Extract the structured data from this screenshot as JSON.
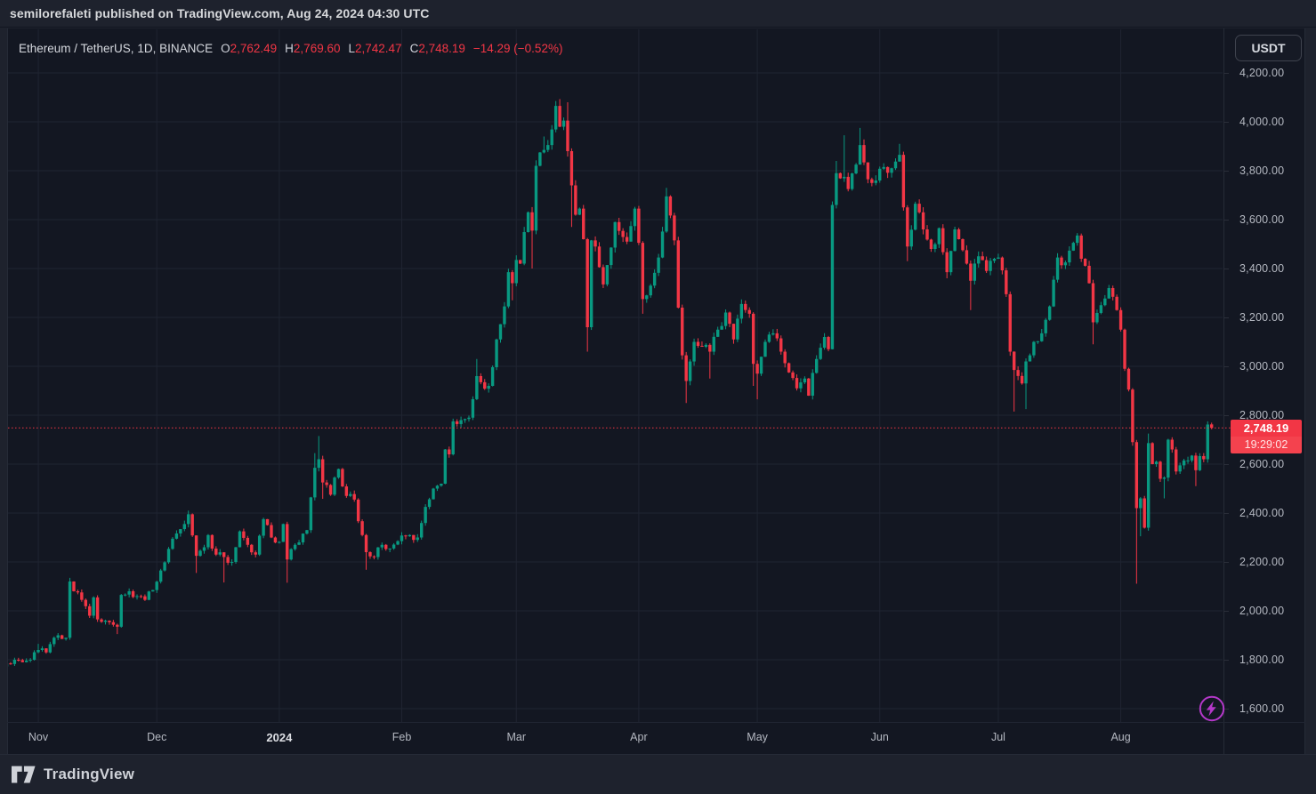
{
  "banner": {
    "text": "semilorefaleti published on TradingView.com, Aug 24, 2024 04:30 UTC"
  },
  "legend": {
    "symbol": "Ethereum / TetherUS, 1D, BINANCE",
    "open_label": "O",
    "open": "2,762.49",
    "high_label": "H",
    "high": "2,769.60",
    "low_label": "L",
    "low": "2,742.47",
    "close_label": "C",
    "close": "2,748.19",
    "change": "−14.29 (−0.52%)"
  },
  "price_axis": {
    "currency": "USDT",
    "last_price_label": "2,748.19",
    "countdown": "19:29:02",
    "ticks": [
      {
        "value": 4200,
        "label": "4,200.00"
      },
      {
        "value": 4000,
        "label": "4,000.00"
      },
      {
        "value": 3800,
        "label": "3,800.00"
      },
      {
        "value": 3600,
        "label": "3,600.00"
      },
      {
        "value": 3400,
        "label": "3,400.00"
      },
      {
        "value": 3200,
        "label": "3,200.00"
      },
      {
        "value": 3000,
        "label": "3,000.00"
      },
      {
        "value": 2800,
        "label": "2,800.00"
      },
      {
        "value": 2600,
        "label": "2,600.00"
      },
      {
        "value": 2400,
        "label": "2,400.00"
      },
      {
        "value": 2200,
        "label": "2,200.00"
      },
      {
        "value": 2000,
        "label": "2,000.00"
      },
      {
        "value": 1800,
        "label": "1,800.00"
      },
      {
        "value": 1600,
        "label": "1,600.00"
      }
    ]
  },
  "time_axis": {
    "ticks": [
      {
        "label": "Nov",
        "date": "2023-11-01",
        "bold": false
      },
      {
        "label": "Dec",
        "date": "2023-12-01",
        "bold": false
      },
      {
        "label": "2024",
        "date": "2024-01-01",
        "bold": true
      },
      {
        "label": "Feb",
        "date": "2024-02-01",
        "bold": false
      },
      {
        "label": "Mar",
        "date": "2024-03-01",
        "bold": false
      },
      {
        "label": "Apr",
        "date": "2024-04-01",
        "bold": false
      },
      {
        "label": "May",
        "date": "2024-05-01",
        "bold": false
      },
      {
        "label": "Jun",
        "date": "2024-06-01",
        "bold": false
      },
      {
        "label": "Jul",
        "date": "2024-07-01",
        "bold": false
      },
      {
        "label": "Aug",
        "date": "2024-08-01",
        "bold": false
      }
    ]
  },
  "footer": {
    "brand": "TradingView"
  },
  "colors": {
    "up": "#089981",
    "down": "#f23645",
    "chart_bg": "#131722",
    "outer_bg": "#1e222d",
    "grid": "#1f2431",
    "border": "#262b37",
    "text": "#d1d4dc",
    "text_muted": "#b5b9c2",
    "last_price_line": "#f23645",
    "lightning": "#b438c9"
  },
  "chart_data": {
    "type": "candlestick",
    "title": "Ethereum / TetherUS, 1D, BINANCE",
    "symbol": "ETHUSDT",
    "exchange": "BINANCE",
    "interval": "1D",
    "x_start": "2023-10-24",
    "x_end": "2024-08-24",
    "y_range": [
      1600,
      4200
    ],
    "y_grid_step": 200,
    "grid": true,
    "today_ohlc": {
      "open": 2762.49,
      "high": 2769.6,
      "low": 2742.47,
      "close": 2748.19,
      "change": -14.29,
      "change_pct": -0.52
    },
    "anchors_format": [
      "date",
      "close",
      "high_override",
      "low_override"
    ],
    "anchors": [
      [
        "2023-10-24",
        1785,
        null,
        1755
      ],
      [
        "2023-10-26",
        1800
      ],
      [
        "2023-10-28",
        1790
      ],
      [
        "2023-10-30",
        1800
      ],
      [
        "2023-11-01",
        1840,
        1865
      ],
      [
        "2023-11-03",
        1830
      ],
      [
        "2023-11-05",
        1890
      ],
      [
        "2023-11-06",
        1900
      ],
      [
        "2023-11-08",
        1890
      ],
      [
        "2023-11-09",
        2120,
        2135
      ],
      [
        "2023-11-10",
        2080
      ],
      [
        "2023-11-12",
        2045
      ],
      [
        "2023-11-14",
        1980
      ],
      [
        "2023-11-15",
        2055
      ],
      [
        "2023-11-16",
        1965
      ],
      [
        "2023-11-18",
        1960
      ],
      [
        "2023-11-21",
        1935,
        null,
        1905
      ],
      [
        "2023-11-22",
        2065
      ],
      [
        "2023-11-24",
        2080
      ],
      [
        "2023-11-26",
        2060
      ],
      [
        "2023-11-28",
        2045
      ],
      [
        "2023-11-30",
        2085
      ],
      [
        "2023-12-02",
        2165
      ],
      [
        "2023-12-05",
        2295
      ],
      [
        "2023-12-08",
        2355
      ],
      [
        "2023-12-09",
        2395,
        2410
      ],
      [
        "2023-12-11",
        2225,
        null,
        2155
      ],
      [
        "2023-12-13",
        2260
      ],
      [
        "2023-12-14",
        2310
      ],
      [
        "2023-12-16",
        2230
      ],
      [
        "2023-12-18",
        2220,
        null,
        2116
      ],
      [
        "2023-12-20",
        2200
      ],
      [
        "2023-12-22",
        2325
      ],
      [
        "2023-12-24",
        2270
      ],
      [
        "2023-12-26",
        2230
      ],
      [
        "2023-12-28",
        2375
      ],
      [
        "2023-12-30",
        2300
      ],
      [
        "2024-01-01",
        2282
      ],
      [
        "2024-01-02",
        2355
      ],
      [
        "2024-01-03",
        2210,
        null,
        2115
      ],
      [
        "2024-01-05",
        2270
      ],
      [
        "2024-01-08",
        2330
      ],
      [
        "2024-01-10",
        2585,
        2645
      ],
      [
        "2024-01-11",
        2620,
        2715
      ],
      [
        "2024-01-12",
        2525,
        null,
        2458
      ],
      [
        "2024-01-14",
        2475
      ],
      [
        "2024-01-16",
        2580
      ],
      [
        "2024-01-18",
        2470
      ],
      [
        "2024-01-20",
        2455
      ],
      [
        "2024-01-22",
        2310
      ],
      [
        "2024-01-23",
        2240,
        null,
        2168
      ],
      [
        "2024-01-25",
        2220
      ],
      [
        "2024-01-27",
        2270
      ],
      [
        "2024-01-29",
        2255
      ],
      [
        "2024-01-31",
        2285
      ],
      [
        "2024-02-02",
        2305
      ],
      [
        "2024-02-05",
        2300
      ],
      [
        "2024-02-07",
        2425
      ],
      [
        "2024-02-09",
        2500
      ],
      [
        "2024-02-11",
        2520
      ],
      [
        "2024-02-12",
        2660
      ],
      [
        "2024-02-13",
        2640
      ],
      [
        "2024-02-14",
        2775
      ],
      [
        "2024-02-16",
        2780
      ],
      [
        "2024-02-18",
        2790
      ],
      [
        "2024-02-20",
        2960,
        3030
      ],
      [
        "2024-02-21",
        2935
      ],
      [
        "2024-02-23",
        2920
      ],
      [
        "2024-02-25",
        3110
      ],
      [
        "2024-02-27",
        3245
      ],
      [
        "2024-02-28",
        3385
      ],
      [
        "2024-02-29",
        3340,
        null,
        3270
      ],
      [
        "2024-03-01",
        3435
      ],
      [
        "2024-03-02",
        3420
      ],
      [
        "2024-03-04",
        3630
      ],
      [
        "2024-03-05",
        3555,
        null,
        3400
      ],
      [
        "2024-03-06",
        3820
      ],
      [
        "2024-03-08",
        3885,
        3940
      ],
      [
        "2024-03-09",
        3905
      ],
      [
        "2024-03-11",
        4065
      ],
      [
        "2024-03-12",
        3980,
        4093
      ],
      [
        "2024-03-13",
        4005
      ],
      [
        "2024-03-14",
        3880,
        4080
      ],
      [
        "2024-03-15",
        3740,
        null,
        3570
      ],
      [
        "2024-03-16",
        3620
      ],
      [
        "2024-03-17",
        3645
      ],
      [
        "2024-03-18",
        3520
      ],
      [
        "2024-03-19",
        3160,
        null,
        3060
      ],
      [
        "2024-03-20",
        3515
      ],
      [
        "2024-03-21",
        3490
      ],
      [
        "2024-03-23",
        3335
      ],
      [
        "2024-03-26",
        3590
      ],
      [
        "2024-03-29",
        3510
      ],
      [
        "2024-03-31",
        3645
      ],
      [
        "2024-04-01",
        3505
      ],
      [
        "2024-04-02",
        3275,
        null,
        3215
      ],
      [
        "2024-04-04",
        3330
      ],
      [
        "2024-04-06",
        3445
      ],
      [
        "2024-04-08",
        3695,
        3730
      ],
      [
        "2024-04-10",
        3515
      ],
      [
        "2024-04-11",
        3240
      ],
      [
        "2024-04-12",
        3045
      ],
      [
        "2024-04-13",
        2940,
        null,
        2850
      ],
      [
        "2024-04-15",
        3100
      ],
      [
        "2024-04-17",
        3080
      ],
      [
        "2024-04-19",
        3060,
        null,
        2950
      ],
      [
        "2024-04-21",
        3150
      ],
      [
        "2024-04-23",
        3220
      ],
      [
        "2024-04-25",
        3110
      ],
      [
        "2024-04-27",
        3255
      ],
      [
        "2024-04-29",
        3215
      ],
      [
        "2024-04-30",
        3010,
        null,
        2920
      ],
      [
        "2024-05-01",
        2970,
        null,
        2865
      ],
      [
        "2024-05-03",
        3100
      ],
      [
        "2024-05-05",
        3135
      ],
      [
        "2024-05-07",
        3060
      ],
      [
        "2024-05-09",
        2975
      ],
      [
        "2024-05-11",
        2910
      ],
      [
        "2024-05-13",
        2950
      ],
      [
        "2024-05-14",
        2880
      ],
      [
        "2024-05-16",
        3030
      ],
      [
        "2024-05-18",
        3120
      ],
      [
        "2024-05-19",
        3070
      ],
      [
        "2024-05-20",
        3660
      ],
      [
        "2024-05-21",
        3790,
        3840
      ],
      [
        "2024-05-23",
        3775,
        3945
      ],
      [
        "2024-05-24",
        3725
      ],
      [
        "2024-05-26",
        3825
      ],
      [
        "2024-05-27",
        3905,
        3975
      ],
      [
        "2024-05-29",
        3765
      ],
      [
        "2024-05-31",
        3760
      ],
      [
        "2024-06-02",
        3815
      ],
      [
        "2024-06-04",
        3810
      ],
      [
        "2024-06-06",
        3865,
        3910
      ],
      [
        "2024-06-07",
        3650
      ],
      [
        "2024-06-08",
        3490,
        null,
        3430
      ],
      [
        "2024-06-10",
        3665
      ],
      [
        "2024-06-12",
        3560
      ],
      [
        "2024-06-14",
        3480
      ],
      [
        "2024-06-16",
        3565
      ],
      [
        "2024-06-18",
        3385,
        null,
        3360
      ],
      [
        "2024-06-20",
        3560
      ],
      [
        "2024-06-21",
        3520
      ],
      [
        "2024-06-23",
        3420
      ],
      [
        "2024-06-24",
        3350,
        null,
        3230
      ],
      [
        "2024-06-26",
        3450
      ],
      [
        "2024-06-28",
        3390
      ],
      [
        "2024-06-30",
        3440
      ],
      [
        "2024-07-01",
        3445
      ],
      [
        "2024-07-03",
        3295
      ],
      [
        "2024-07-04",
        3060
      ],
      [
        "2024-07-05",
        2985,
        null,
        2815
      ],
      [
        "2024-07-07",
        2930
      ],
      [
        "2024-07-08",
        3020,
        null,
        2825
      ],
      [
        "2024-07-10",
        3100
      ],
      [
        "2024-07-12",
        3135
      ],
      [
        "2024-07-14",
        3245
      ],
      [
        "2024-07-16",
        3445
      ],
      [
        "2024-07-18",
        3425
      ],
      [
        "2024-07-20",
        3505
      ],
      [
        "2024-07-21",
        3535,
        3545
      ],
      [
        "2024-07-22",
        3440
      ],
      [
        "2024-07-24",
        3340
      ],
      [
        "2024-07-25",
        3180,
        null,
        3090
      ],
      [
        "2024-07-27",
        3250
      ],
      [
        "2024-07-29",
        3320
      ],
      [
        "2024-07-31",
        3230
      ],
      [
        "2024-08-01",
        3150
      ],
      [
        "2024-08-02",
        2990
      ],
      [
        "2024-08-03",
        2905
      ],
      [
        "2024-08-04",
        2690
      ],
      [
        "2024-08-05",
        2420,
        null,
        2111
      ],
      [
        "2024-08-06",
        2460,
        null,
        2305
      ],
      [
        "2024-08-07",
        2340
      ],
      [
        "2024-08-08",
        2686,
        2725
      ],
      [
        "2024-08-09",
        2600
      ],
      [
        "2024-08-10",
        2610
      ],
      [
        "2024-08-11",
        2540
      ],
      [
        "2024-08-12",
        2545,
        null,
        2460
      ],
      [
        "2024-08-13",
        2700
      ],
      [
        "2024-08-14",
        2660
      ],
      [
        "2024-08-15",
        2570
      ],
      [
        "2024-08-16",
        2595
      ],
      [
        "2024-08-17",
        2615
      ],
      [
        "2024-08-18",
        2615
      ],
      [
        "2024-08-19",
        2635
      ],
      [
        "2024-08-20",
        2575,
        null,
        2510
      ],
      [
        "2024-08-21",
        2633
      ],
      [
        "2024-08-22",
        2620
      ],
      [
        "2024-08-23",
        2762,
        2775
      ],
      [
        "2024-08-24",
        2748.19
      ]
    ]
  }
}
